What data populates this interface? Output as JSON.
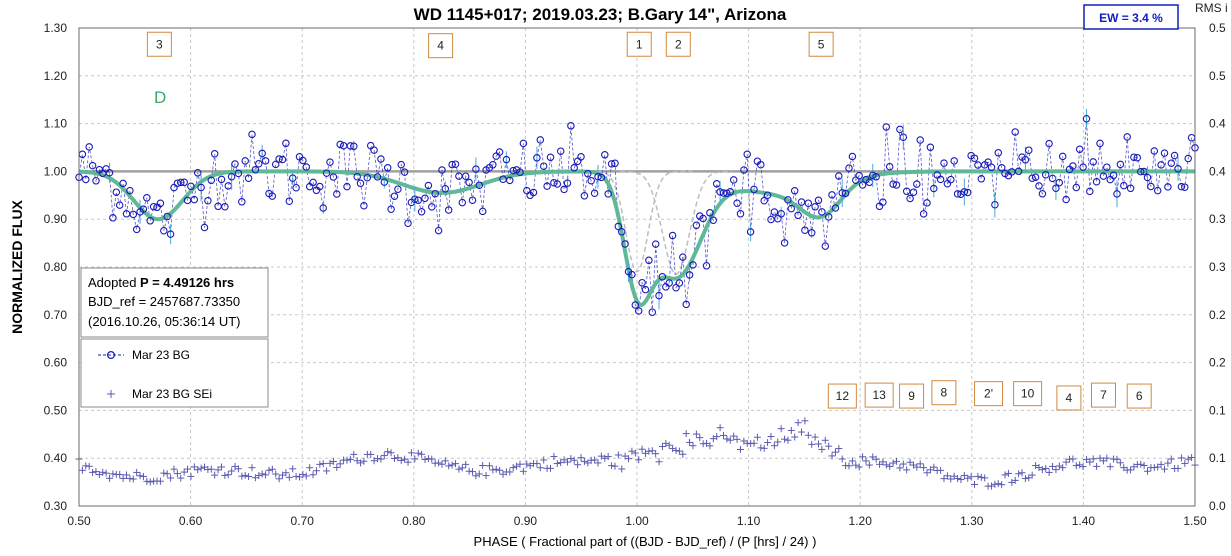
{
  "chart_data": {
    "type": "scatter",
    "title": "WD 1145+017; 2019.03.23; B.Gary 14\",  Arizona",
    "xlabel": "PHASE ( Fractional part of ((BJD - BJD_ref) / (P [hrs] / 24) )",
    "ylabel": "NORMALIZED FLUX",
    "y2label": "RMS i",
    "xlim": [
      0.5,
      1.5
    ],
    "ylim": [
      0.3,
      1.3
    ],
    "y2lim": [
      0.0,
      0.5
    ],
    "x_ticks": [
      "0.50",
      "0.60",
      "0.70",
      "0.80",
      "0.90",
      "1.00",
      "1.10",
      "1.20",
      "1.30",
      "1.40",
      "1.50"
    ],
    "y_ticks": [
      "0.30",
      "0.40",
      "0.50",
      "0.60",
      "0.70",
      "0.80",
      "0.90",
      "1.00",
      "1.10",
      "1.20",
      "1.30"
    ],
    "y2_ticks": [
      "0.0",
      "0.1",
      "0.1",
      "0.2",
      "0.2",
      "0.3",
      "0.3",
      "0.4",
      "0.4",
      "0.5",
      "0.5"
    ],
    "grid": true,
    "ew_label": "EW =  3.4 %",
    "d_label": "D",
    "info_box": {
      "line1_prefix": "Adopted ",
      "line1_bold": "P = 4.49126 hrs",
      "line2": "BJD_ref = 2457687.73350",
      "line3": "(2016.10.26, 05:36:14 UT)"
    },
    "legend": [
      {
        "name": "Mar 23 BG",
        "marker": "circle",
        "color": "#1a1ab8"
      },
      {
        "name": "Mar 23 BG SEi",
        "marker": "plus",
        "color": "#5a5ab0"
      }
    ],
    "markers": [
      {
        "label": "3",
        "x": 0.572,
        "y": 1.266
      },
      {
        "label": "4",
        "x": 0.824,
        "y": 1.263
      },
      {
        "label": "1",
        "x": 1.002,
        "y": 1.266
      },
      {
        "label": "2",
        "x": 1.037,
        "y": 1.266
      },
      {
        "label": "5",
        "x": 1.165,
        "y": 1.266
      },
      {
        "label": "12",
        "x": 1.184,
        "y": 0.53
      },
      {
        "label": "13",
        "x": 1.217,
        "y": 0.532
      },
      {
        "label": "9",
        "x": 1.246,
        "y": 0.53
      },
      {
        "label": "8",
        "x": 1.275,
        "y": 0.537
      },
      {
        "label": "2'",
        "x": 1.315,
        "y": 0.535
      },
      {
        "label": "10",
        "x": 1.35,
        "y": 0.535
      },
      {
        "label": "4",
        "x": 1.387,
        "y": 0.526
      },
      {
        "label": "7",
        "x": 1.418,
        "y": 0.532
      },
      {
        "label": "6",
        "x": 1.45,
        "y": 0.53
      }
    ],
    "colors": {
      "flux": "#1a1ab8",
      "rms": "#5a5ab0",
      "model": "#5fb896",
      "baseline": "#a0a0a0",
      "errorbar": "#4aa8d8",
      "marker_box": "#d08a40",
      "ew_box": "#1020c0"
    },
    "dips": [
      {
        "center": 0.571,
        "depth": 0.1,
        "width": 0.022
      },
      {
        "center": 0.825,
        "depth": 0.045,
        "width": 0.035
      },
      {
        "center": 1.0,
        "depth": 0.21,
        "width": 0.012
      },
      {
        "center": 1.035,
        "depth": 0.215,
        "width": 0.022
      },
      {
        "center": 1.125,
        "depth": 0.045,
        "width": 0.045
      },
      {
        "center": 1.165,
        "depth": 0.065,
        "width": 0.018
      }
    ],
    "series": [
      {
        "name": "Mar 23 BG",
        "n": 330,
        "x_range": [
          0.5,
          1.5
        ],
        "scatter_sd": 0.045
      },
      {
        "name": "Mar 23 BG SEi",
        "n": 330,
        "x_range": [
          0.5,
          1.5
        ],
        "y2_base": 0.04
      }
    ]
  }
}
